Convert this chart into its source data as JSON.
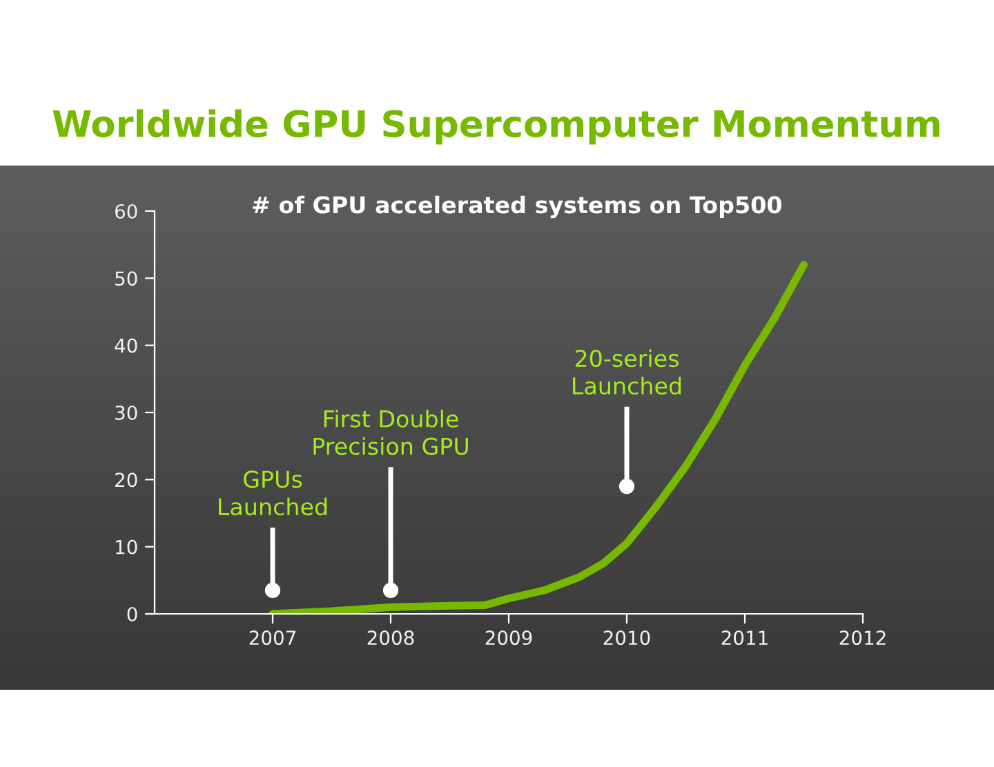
{
  "chart_data": {
    "type": "line",
    "title": "Worldwide GPU Supercomputer Momentum",
    "subtitle": "# of GPU accelerated systems on Top500",
    "x": [
      2007,
      2007.5,
      2008,
      2008.5,
      2008.8,
      2009,
      2009.3,
      2009.6,
      2009.8,
      2010,
      2010.25,
      2010.5,
      2010.75,
      2011,
      2011.25,
      2011.5
    ],
    "series": [
      {
        "color": "#76b900",
        "values": [
          0,
          0.4,
          1,
          1.2,
          1.3,
          2.3,
          3.5,
          5.5,
          7.5,
          10.5,
          16,
          22,
          29,
          37,
          44,
          52
        ]
      }
    ],
    "xlim": [
      2006,
      2012
    ],
    "ylim": [
      0,
      60
    ],
    "xticks": [
      2007,
      2008,
      2009,
      2010,
      2011,
      2012
    ],
    "yticks": [
      0,
      10,
      20,
      30,
      40,
      50,
      60
    ],
    "grid": false,
    "legend": false,
    "marker": "none",
    "line_style": "solid",
    "annotations": [
      {
        "text": "GPUs\nLaunched",
        "x": 2007,
        "y": 3.5
      },
      {
        "text": "First Double\nPrecision GPU",
        "x": 2008,
        "y": 3.5
      },
      {
        "text": "20-series\nLaunched",
        "x": 2010,
        "y": 19
      }
    ]
  }
}
